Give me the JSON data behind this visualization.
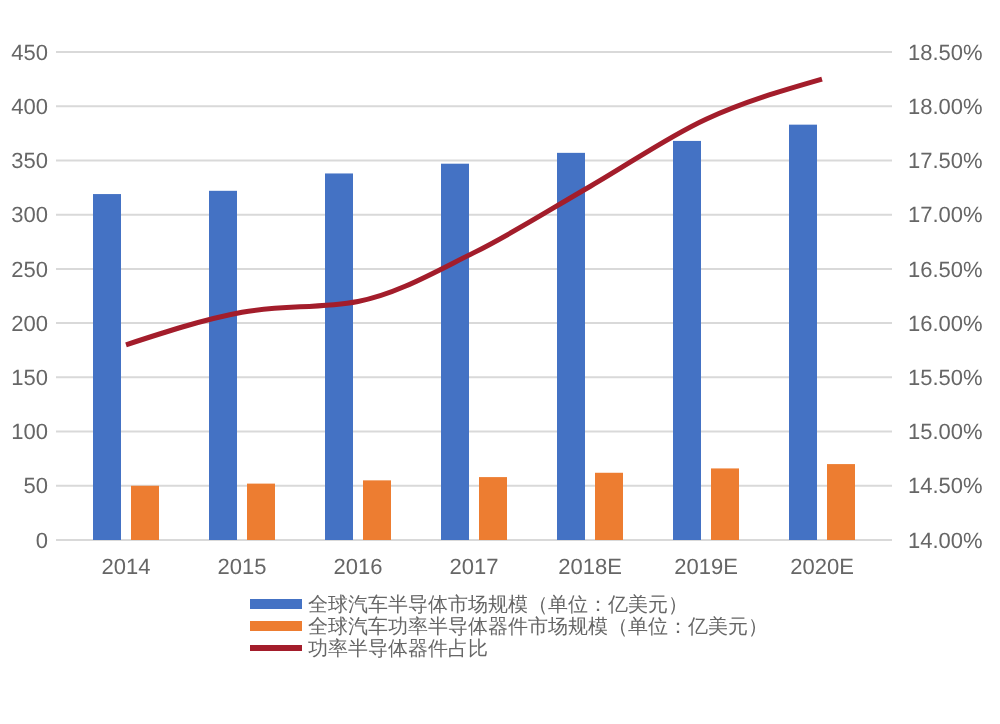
{
  "chart_data": {
    "type": "bar",
    "categories": [
      "2014",
      "2015",
      "2016",
      "2017",
      "2018E",
      "2019E",
      "2020E"
    ],
    "series": [
      {
        "name": "全球汽车半导体市场规模（单位：亿美元）",
        "color": "#4472c4",
        "values": [
          319,
          322,
          338,
          347,
          357,
          368,
          383
        ]
      },
      {
        "name": "全球汽车功率半导体器件市场规模（单位：亿美元）",
        "color": "#ed7d31",
        "values": [
          50,
          52,
          55,
          58,
          62,
          66,
          70
        ]
      },
      {
        "name": "功率半导体器件占比",
        "type": "line",
        "axis": "y2",
        "color": "#a31d2b",
        "values": [
          15.8,
          16.1,
          16.2,
          16.65,
          17.26,
          17.88,
          18.25
        ]
      }
    ],
    "ylim": [
      0,
      450
    ],
    "yticks": [
      0,
      50,
      100,
      150,
      200,
      250,
      300,
      350,
      400,
      450
    ],
    "y2lim": [
      14,
      18.5
    ],
    "y2ticks": [
      {
        "value": 14,
        "label": "14.00%"
      },
      {
        "value": 14.5,
        "label": "14.50%"
      },
      {
        "value": 15,
        "label": "15.00%"
      },
      {
        "value": 15.5,
        "label": "15.50%"
      },
      {
        "value": 16,
        "label": "16.00%"
      },
      {
        "value": 16.5,
        "label": "16.50%"
      },
      {
        "value": 17,
        "label": "17.00%"
      },
      {
        "value": 17.5,
        "label": "17.50%"
      },
      {
        "value": 18,
        "label": "18.00%"
      },
      {
        "value": 18.5,
        "label": "18.50%"
      }
    ],
    "grid": "y",
    "legend": "bottom",
    "marker": "none",
    "line_style": "solid"
  }
}
